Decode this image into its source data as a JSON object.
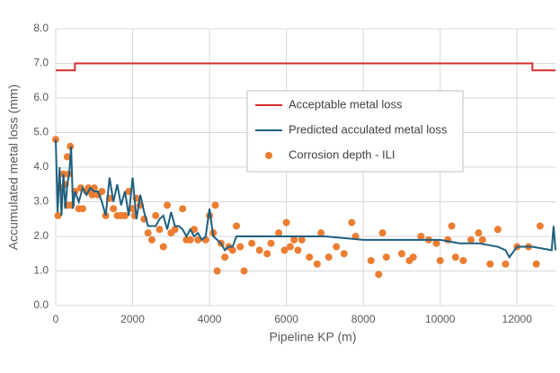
{
  "chart_data": {
    "type": "line",
    "xlabel": "Pipeline KP (m)",
    "ylabel": "Accumulated metal loss (mm)",
    "xlim": [
      0,
      13000
    ],
    "xticks": [
      0,
      2000,
      4000,
      6000,
      8000,
      10000,
      12000
    ],
    "ylim": [
      0,
      8
    ],
    "yticks": [
      {
        "value": 0,
        "label": "0.0"
      },
      {
        "value": 1,
        "label": "1.0"
      },
      {
        "value": 2,
        "label": "2.0"
      },
      {
        "value": 3,
        "label": "3.0"
      },
      {
        "value": 4,
        "label": "4.0"
      },
      {
        "value": 5,
        "label": "5.0"
      },
      {
        "value": 6,
        "label": "6.0"
      },
      {
        "value": 7,
        "label": "7.0"
      },
      {
        "value": 8,
        "label": "8.0"
      }
    ],
    "grid": true,
    "series": [
      {
        "name": "Acceptable metal loss",
        "type": "line",
        "color": "#d62d2d",
        "x": [
          0,
          500,
          500,
          12400,
          12400,
          13000
        ],
        "values": [
          6.8,
          6.8,
          7.0,
          7.0,
          6.8,
          6.8
        ]
      },
      {
        "name": "Predicted acculated metal loss",
        "type": "line",
        "color": "#1f5f7f",
        "x": [
          0,
          50,
          100,
          150,
          200,
          250,
          300,
          350,
          400,
          450,
          500,
          600,
          700,
          800,
          900,
          1000,
          1100,
          1200,
          1300,
          1400,
          1500,
          1600,
          1700,
          1800,
          1900,
          2000,
          2100,
          2200,
          2300,
          2400,
          2500,
          2600,
          2700,
          2800,
          2900,
          3000,
          3100,
          3200,
          3300,
          3400,
          3500,
          3600,
          3700,
          3800,
          3900,
          4000,
          4100,
          4200,
          4300,
          4400,
          4500,
          4600,
          4700,
          4800,
          5000,
          6000,
          7000,
          8000,
          9000,
          10000,
          10500,
          11000,
          11500,
          11700,
          11800,
          12000,
          12400,
          12900,
          12950,
          13000
        ],
        "values": [
          4.8,
          2.7,
          4.0,
          2.6,
          3.8,
          2.8,
          3.5,
          3.8,
          4.6,
          2.8,
          3.3,
          3.0,
          3.4,
          3.2,
          3.4,
          3.3,
          3.3,
          3.0,
          2.6,
          3.7,
          3.0,
          3.5,
          2.9,
          3.3,
          2.6,
          3.7,
          2.5,
          3.2,
          2.7,
          2.3,
          2.3,
          2.3,
          2.5,
          2.6,
          2.2,
          2.7,
          2.3,
          2.3,
          2.2,
          2.0,
          2.2,
          2.0,
          2.1,
          1.9,
          2.0,
          2.8,
          2.0,
          1.9,
          1.8,
          1.6,
          1.7,
          1.7,
          2.0,
          2.0,
          2.0,
          2.0,
          2.0,
          1.9,
          1.9,
          1.9,
          1.8,
          1.8,
          1.7,
          1.6,
          1.4,
          1.7,
          1.7,
          1.6,
          2.3,
          1.6
        ]
      },
      {
        "name": "Corrosion depth - ILI",
        "type": "scatter",
        "color": "#ed7d31",
        "x": [
          0,
          60,
          150,
          200,
          250,
          300,
          330,
          380,
          300,
          400,
          500,
          600,
          650,
          700,
          800,
          850,
          900,
          950,
          1000,
          1100,
          1200,
          1300,
          1400,
          1500,
          1600,
          1700,
          1800,
          1900,
          2000,
          2050,
          2100,
          2200,
          2300,
          2400,
          2500,
          2600,
          2700,
          2800,
          2900,
          3000,
          3100,
          3300,
          3400,
          3500,
          3600,
          3700,
          3900,
          4000,
          4100,
          4150,
          4200,
          4300,
          4400,
          4500,
          4600,
          4700,
          4800,
          4900,
          5100,
          5300,
          5500,
          5600,
          5800,
          5950,
          6000,
          6100,
          6200,
          6300,
          6400,
          6600,
          6800,
          6900,
          7100,
          7300,
          7500,
          7700,
          7800,
          8200,
          8400,
          8500,
          8600,
          9000,
          9200,
          9300,
          9500,
          9700,
          9900,
          10000,
          10200,
          10300,
          10400,
          10600,
          10800,
          11000,
          11100,
          11300,
          11500,
          11700,
          12000,
          12300,
          12500,
          12600
        ],
        "values": [
          4.8,
          2.6,
          3.4,
          3.8,
          3.5,
          4.3,
          3.8,
          4.6,
          2.9,
          2.9,
          3.3,
          2.8,
          3.4,
          2.8,
          3.3,
          3.4,
          3.3,
          3.2,
          3.4,
          3.2,
          3.3,
          2.6,
          3.1,
          2.8,
          2.6,
          2.6,
          2.6,
          3.3,
          2.8,
          2.6,
          3.1,
          2.9,
          2.5,
          2.1,
          1.9,
          2.6,
          2.2,
          1.7,
          2.9,
          2.1,
          2.2,
          2.8,
          1.9,
          1.9,
          2.2,
          1.9,
          1.9,
          2.6,
          2.1,
          2.9,
          1.0,
          1.8,
          1.4,
          1.7,
          1.6,
          2.3,
          1.7,
          1.0,
          1.8,
          1.6,
          1.5,
          1.8,
          2.1,
          1.6,
          2.4,
          1.7,
          1.9,
          1.6,
          1.9,
          1.4,
          1.2,
          2.1,
          1.4,
          1.7,
          1.5,
          2.4,
          2.0,
          1.3,
          0.9,
          2.1,
          1.4,
          1.5,
          1.3,
          1.4,
          2.0,
          1.9,
          1.8,
          1.3,
          1.9,
          2.3,
          1.4,
          1.3,
          1.9,
          2.1,
          1.9,
          1.2,
          2.2,
          1.2,
          1.7,
          1.7,
          1.2,
          2.3
        ]
      }
    ]
  }
}
